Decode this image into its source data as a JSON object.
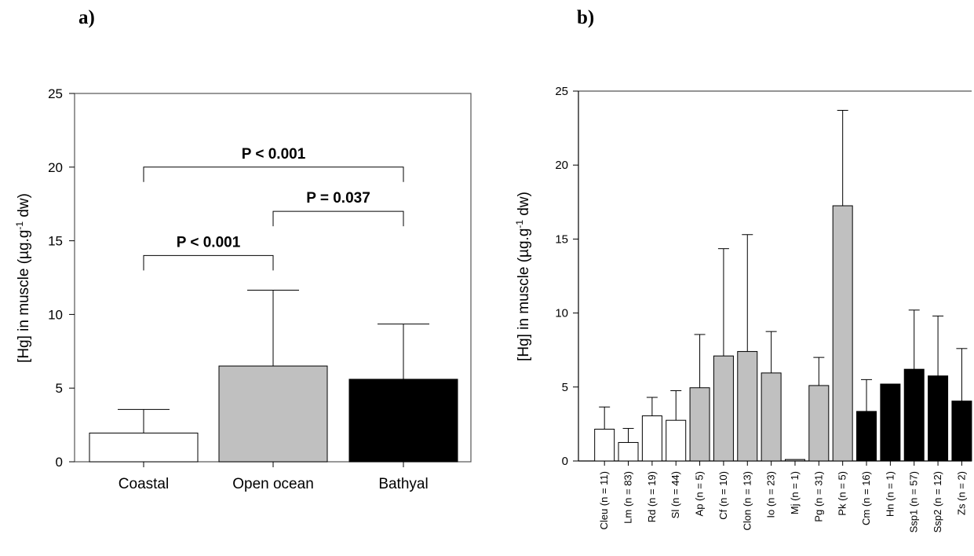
{
  "chart_data": [
    {
      "type": "bar",
      "panel_label": "a)",
      "ylabel": "[Hg] in muscle (µg.g-1 dw)",
      "ylim": [
        0,
        25
      ],
      "yticks": [
        0,
        5,
        10,
        15,
        20,
        25
      ],
      "categories": [
        "Coastal",
        "Open ocean",
        "Bathyal"
      ],
      "values": [
        1.95,
        6.5,
        5.6
      ],
      "errors_upper": [
        3.55,
        11.65,
        9.35
      ],
      "colors": [
        "#ffffff",
        "#c0c0c0",
        "#000000"
      ],
      "annotations": [
        {
          "text": "P < 0.001",
          "from": "Coastal",
          "to": "Bathyal",
          "y": 20
        },
        {
          "text": "P = 0.037",
          "from": "Open ocean",
          "to": "Bathyal",
          "y": 17
        },
        {
          "text": "P < 0.001",
          "from": "Coastal",
          "to": "Open ocean",
          "y": 14
        }
      ]
    },
    {
      "type": "bar",
      "panel_label": "b)",
      "ylabel": "[Hg] in muscle (µg.g-1 dw)",
      "ylim": [
        0,
        25
      ],
      "yticks": [
        0,
        5,
        10,
        15,
        20,
        25
      ],
      "categories": [
        "Cleu (n = 11)",
        "Lm (n = 83)",
        "Rd (n = 19)",
        "Sl (n = 44)",
        "Ap (n = 5)",
        "Cf (n = 10)",
        "Clon (n = 13)",
        "Io (n = 23)",
        "Mj (n = 1)",
        "Pg (n = 31)",
        "Pk (n = 5)",
        "Cm (n = 16)",
        "Hn (n = 1)",
        "Ssp1 (n = 57)",
        "Ssp2 (n = 12)",
        "Zs (n = 2)"
      ],
      "values": [
        2.15,
        1.25,
        3.05,
        2.75,
        4.95,
        7.1,
        7.4,
        5.95,
        0.1,
        5.1,
        17.25,
        3.35,
        5.2,
        6.2,
        5.75,
        4.05
      ],
      "errors_upper": [
        3.65,
        2.2,
        4.3,
        4.75,
        8.55,
        14.35,
        15.3,
        8.75,
        null,
        7.0,
        23.7,
        5.5,
        null,
        10.2,
        9.8,
        7.6
      ],
      "colors": [
        "#ffffff",
        "#ffffff",
        "#ffffff",
        "#ffffff",
        "#c0c0c0",
        "#c0c0c0",
        "#c0c0c0",
        "#c0c0c0",
        "#c0c0c0",
        "#c0c0c0",
        "#c0c0c0",
        "#000000",
        "#000000",
        "#000000",
        "#000000",
        "#000000"
      ]
    }
  ]
}
